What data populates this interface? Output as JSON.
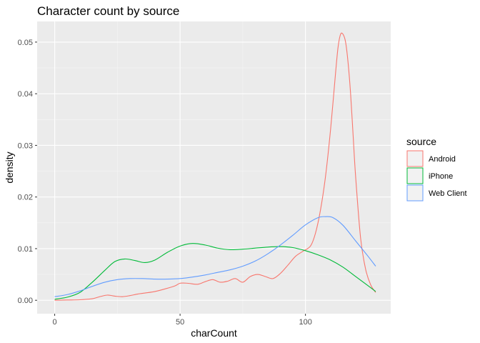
{
  "chart_data": {
    "type": "line",
    "title": "Character count by source",
    "xlabel": "charCount",
    "ylabel": "density",
    "xlim": [
      -7,
      134
    ],
    "ylim": [
      -0.0026,
      0.054
    ],
    "x_ticks": [
      0,
      50,
      100
    ],
    "x_tick_labels": [
      "0",
      "50",
      "100"
    ],
    "y_ticks": [
      0,
      0.01,
      0.02,
      0.03,
      0.04,
      0.05
    ],
    "y_tick_labels": [
      "0.00",
      "0.01",
      "0.02",
      "0.03",
      "0.04",
      "0.05"
    ],
    "grid": true,
    "legend": {
      "title": "source",
      "position": "right"
    },
    "series": [
      {
        "name": "Android",
        "color": "#F8766D",
        "x": [
          0,
          5,
          10,
          15,
          18,
          21,
          24,
          27,
          30,
          33,
          36,
          40,
          44,
          48,
          50,
          53,
          57,
          60,
          63,
          66,
          69,
          72,
          75,
          78,
          81,
          84,
          87,
          90,
          93,
          96,
          99,
          102,
          104,
          106,
          108,
          110,
          112,
          113,
          114,
          115,
          116,
          117,
          118,
          119,
          120,
          122,
          124,
          126,
          128
        ],
        "y": [
          0.0,
          5e-05,
          0.0001,
          0.0003,
          0.0007,
          0.001,
          0.0008,
          0.0007,
          0.0009,
          0.0012,
          0.0014,
          0.0017,
          0.0022,
          0.0028,
          0.0033,
          0.0033,
          0.0031,
          0.0036,
          0.004,
          0.0035,
          0.0037,
          0.0042,
          0.0035,
          0.0046,
          0.005,
          0.0046,
          0.0042,
          0.0052,
          0.0068,
          0.0085,
          0.0095,
          0.0105,
          0.013,
          0.0175,
          0.024,
          0.033,
          0.044,
          0.049,
          0.0515,
          0.0515,
          0.05,
          0.046,
          0.04,
          0.032,
          0.024,
          0.012,
          0.006,
          0.003,
          0.0015
        ]
      },
      {
        "name": "iPhone",
        "color": "#00BA38",
        "x": [
          0,
          5,
          10,
          15,
          20,
          24,
          28,
          32,
          36,
          40,
          45,
          50,
          55,
          60,
          65,
          70,
          75,
          80,
          85,
          90,
          95,
          100,
          105,
          110,
          115,
          120,
          125,
          128
        ],
        "y": [
          0.0002,
          0.0006,
          0.0015,
          0.0035,
          0.0058,
          0.0075,
          0.008,
          0.0077,
          0.0073,
          0.0078,
          0.0093,
          0.0105,
          0.011,
          0.0107,
          0.0101,
          0.0098,
          0.0099,
          0.0101,
          0.0103,
          0.0104,
          0.0102,
          0.0096,
          0.0088,
          0.0078,
          0.0064,
          0.0046,
          0.0028,
          0.0017
        ]
      },
      {
        "name": "Web Client",
        "color": "#619CFF",
        "x": [
          0,
          5,
          10,
          15,
          20,
          25,
          30,
          35,
          40,
          45,
          50,
          55,
          60,
          65,
          70,
          75,
          80,
          85,
          90,
          95,
          100,
          105,
          108,
          111,
          115,
          120,
          125,
          128
        ],
        "y": [
          0.0007,
          0.0011,
          0.0018,
          0.0027,
          0.0035,
          0.004,
          0.0042,
          0.0042,
          0.0041,
          0.0041,
          0.0042,
          0.0045,
          0.0049,
          0.0054,
          0.0059,
          0.0066,
          0.0076,
          0.009,
          0.0107,
          0.0126,
          0.0146,
          0.016,
          0.0162,
          0.016,
          0.0145,
          0.0115,
          0.0085,
          0.0066
        ]
      }
    ]
  }
}
